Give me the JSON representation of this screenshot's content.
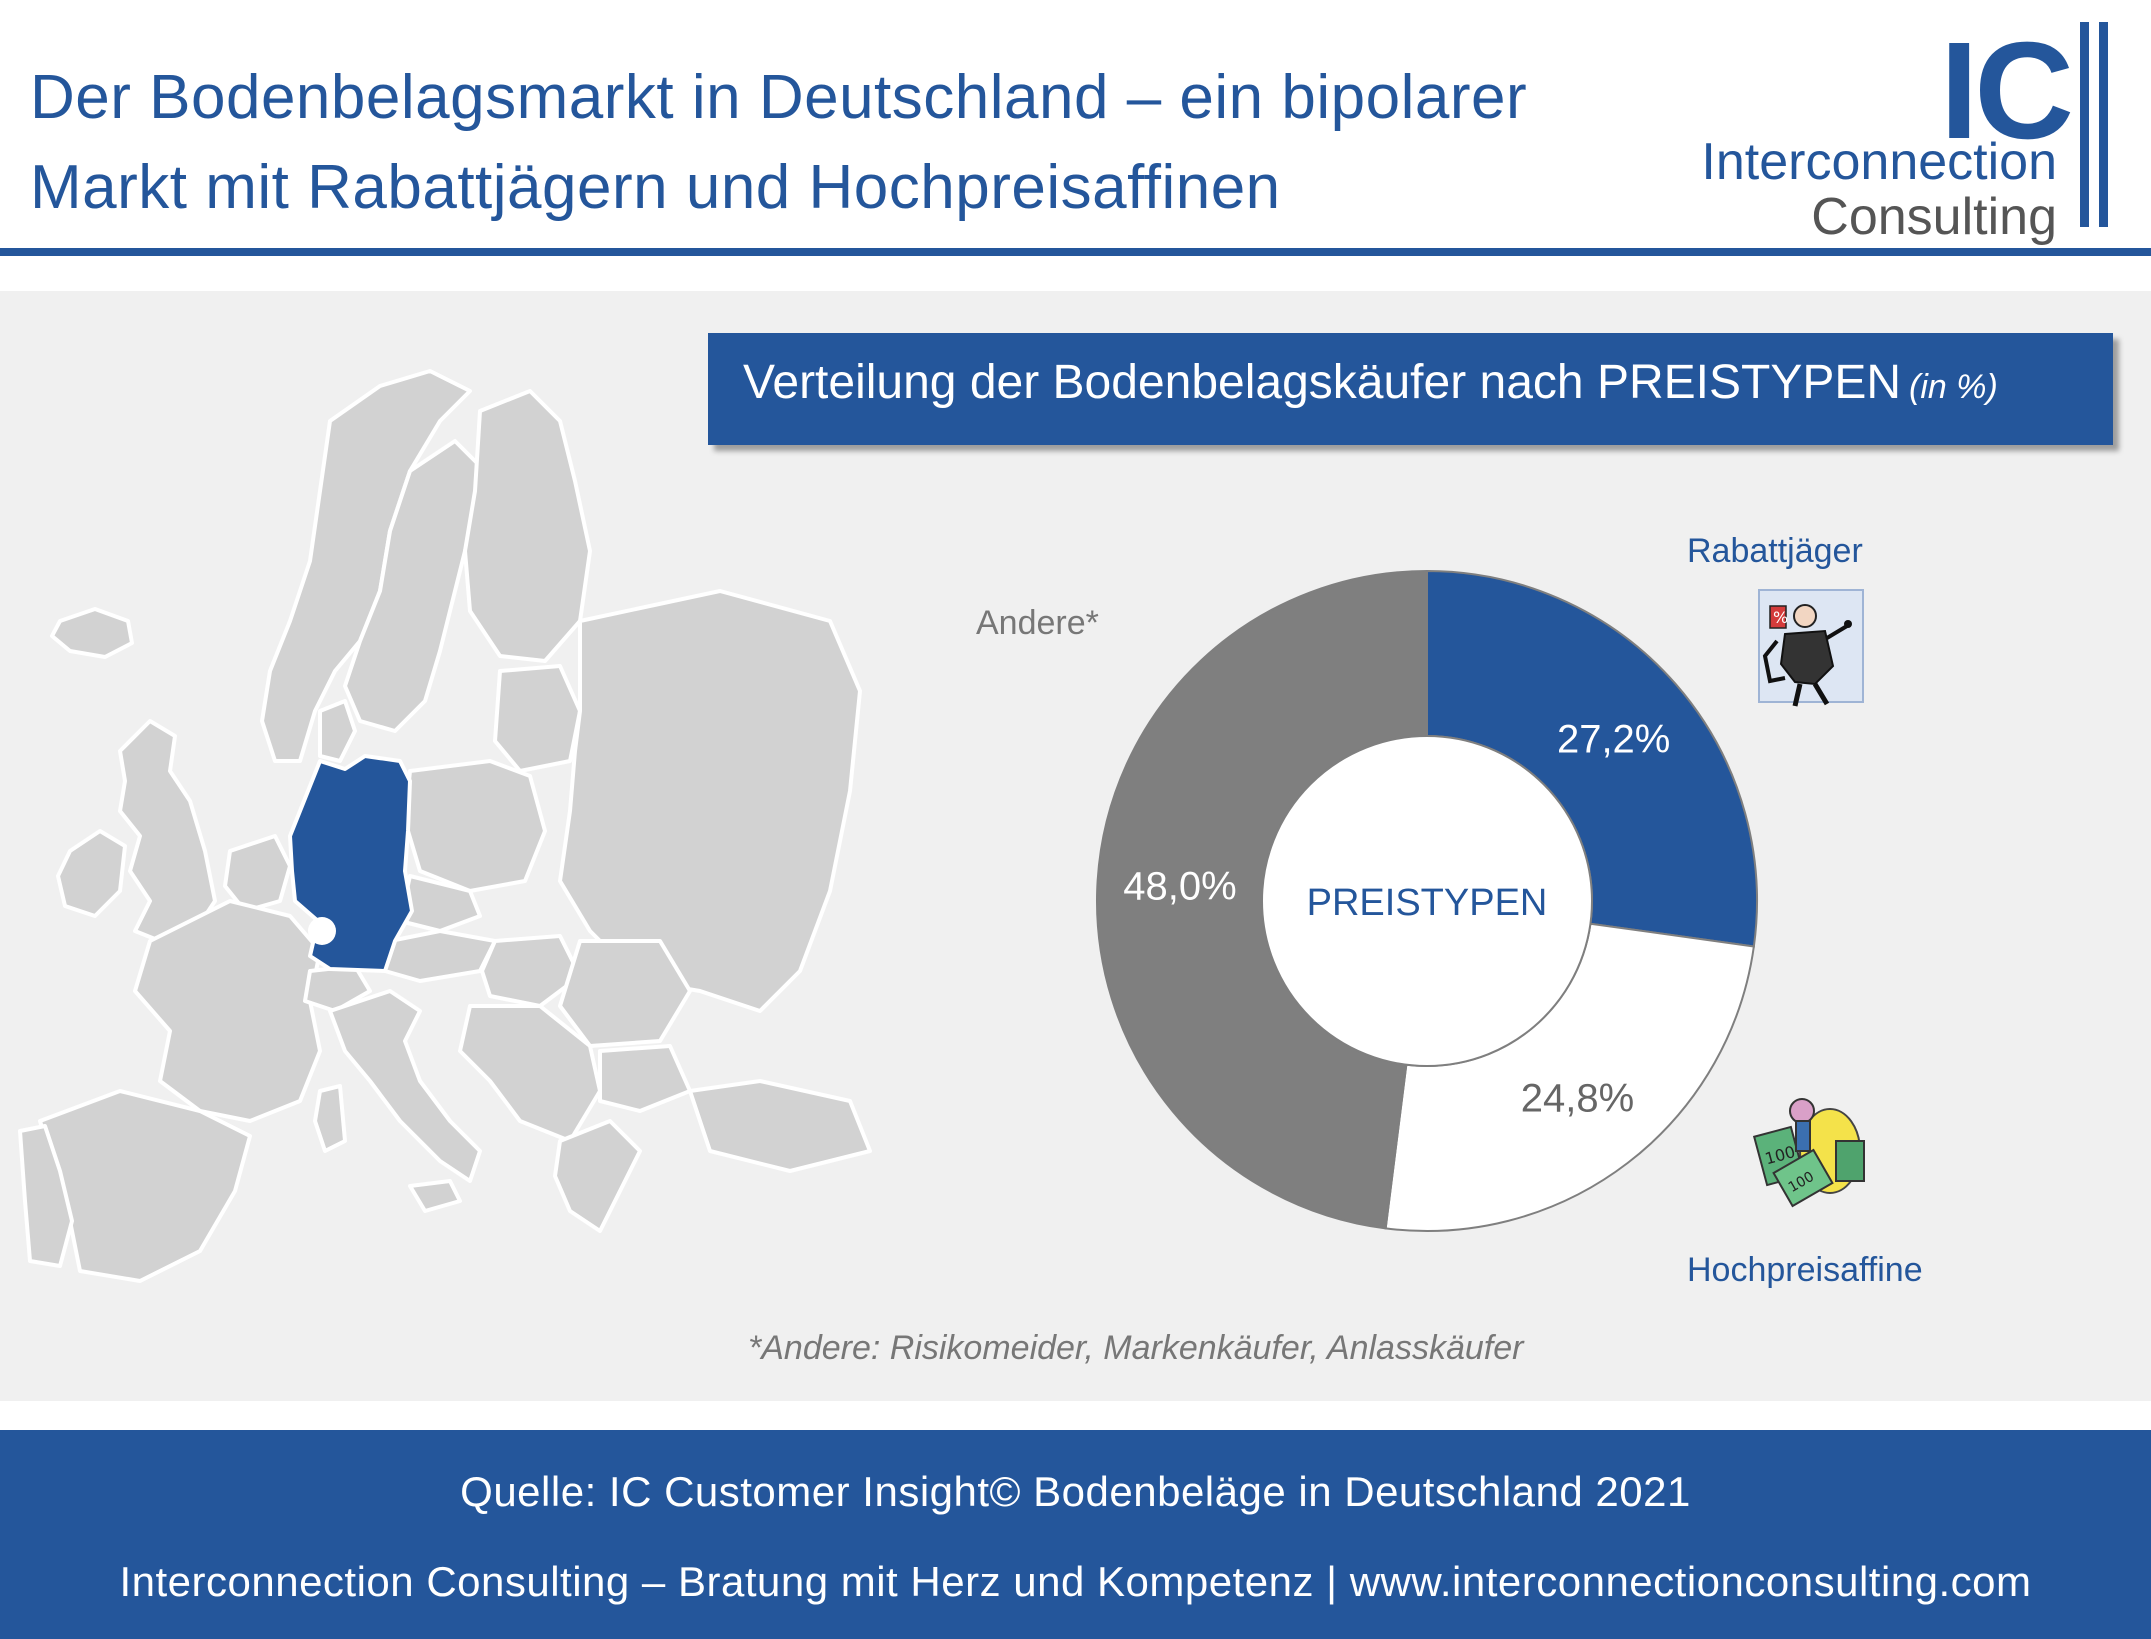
{
  "header": {
    "title_line1": "Der Bodenbelagsmarkt in Deutschland – ein bipolarer",
    "title_line2": "Markt mit Rabattjägern und Hochpreisaffinen"
  },
  "logo": {
    "mark": "IC",
    "line1": "Interconnection",
    "line2": "Consulting"
  },
  "map": {
    "highlighted_country": "Deutschland",
    "highlight_color": "#24569b",
    "base_color": "#d2d2d2"
  },
  "chart_title": {
    "text": "Verteilung der Bodenbelagskäufer nach PREISTYPEN",
    "unit": "(in %)"
  },
  "chart_data": {
    "type": "pie",
    "center_label": "PREISTYPEN",
    "series": [
      {
        "name": "Rabattjäger",
        "value": 27.2,
        "label": "27,2%",
        "color": "#24569b"
      },
      {
        "name": "Hochpreisaffine",
        "value": 24.8,
        "label": "24,8%",
        "color": "#ffffff"
      },
      {
        "name": "Andere*",
        "value": 48.0,
        "label": "48,0%",
        "color": "#7f7f7f"
      }
    ]
  },
  "labels": {
    "rabattjaeger": "Rabattjäger",
    "hochpreisaffine": "Hochpreisaffine",
    "andere": "Andere*"
  },
  "illustrations": {
    "rabattjaeger_icon": "discount-hunter-cartoon",
    "hochpreisaffine_icon": "premium-buyer-cartoon"
  },
  "footnote": "*Andere: Risikomeider, Markenkäufer, Anlasskäufer",
  "footer": {
    "source": "Quelle: IC Customer Insight© Bodenbeläge in Deutschland 2021",
    "company": "Interconnection Consulting – Bratung mit Herz und Kompetenz | www.interconnectionconsulting.com"
  }
}
